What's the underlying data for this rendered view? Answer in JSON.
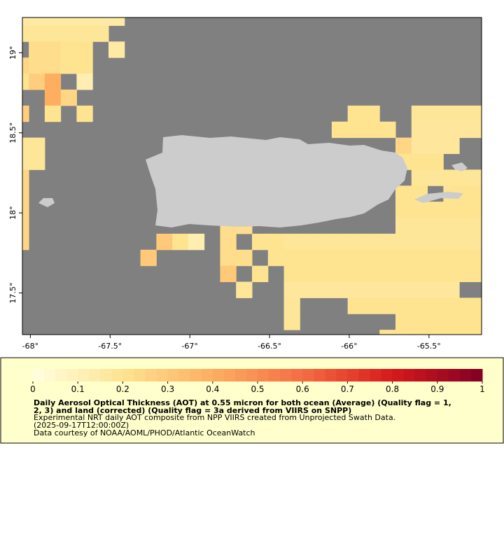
{
  "chart_data": {
    "type": "map",
    "xlim": [
      -68.05,
      -65.17
    ],
    "ylim": [
      17.24,
      19.22
    ],
    "xticks": [
      {
        "value": -68,
        "label": "-68°"
      },
      {
        "value": -67.5,
        "label": "-67.5°"
      },
      {
        "value": -67,
        "label": "-67°"
      },
      {
        "value": -66.5,
        "label": "-66.5°"
      },
      {
        "value": -66,
        "label": "-66°"
      },
      {
        "value": -65.5,
        "label": "-65.5°"
      }
    ],
    "yticks": [
      {
        "value": 17.5,
        "label": "17.5°"
      },
      {
        "value": 18,
        "label": "18°"
      },
      {
        "value": 18.5,
        "label": "18.5°"
      },
      {
        "value": 19,
        "label": "19°"
      }
    ],
    "grid": {
      "west": -68.11,
      "north": 19.27,
      "cell": 0.1,
      "rows": [
        [
          0.15,
          0.15,
          0.15,
          0.15,
          0.15,
          0.15,
          0.15,
          null,
          null,
          null,
          null,
          null,
          null,
          null,
          null,
          null,
          null,
          null,
          null,
          null,
          null,
          null,
          null,
          null,
          null,
          null,
          null,
          null,
          null,
          null
        ],
        [
          0.18,
          0.18,
          0.18,
          0.18,
          0.18,
          0.18,
          null,
          null,
          null,
          null,
          null,
          null,
          null,
          null,
          null,
          null,
          null,
          null,
          null,
          null,
          null,
          null,
          null,
          null,
          null,
          null,
          null,
          null,
          null,
          null
        ],
        [
          null,
          0.22,
          0.22,
          0.2,
          0.2,
          null,
          0.15,
          null,
          null,
          null,
          null,
          null,
          null,
          null,
          null,
          null,
          null,
          null,
          null,
          null,
          null,
          null,
          null,
          null,
          null,
          null,
          null,
          null,
          null,
          null
        ],
        [
          0.25,
          0.22,
          0.22,
          0.2,
          0.2,
          null,
          null,
          null,
          null,
          null,
          null,
          null,
          null,
          null,
          null,
          null,
          null,
          null,
          null,
          null,
          null,
          null,
          null,
          null,
          null,
          null,
          null,
          null,
          null,
          null
        ],
        [
          0.2,
          0.28,
          0.4,
          null,
          0.12,
          null,
          null,
          null,
          null,
          null,
          null,
          null,
          null,
          null,
          null,
          null,
          null,
          null,
          null,
          null,
          null,
          null,
          null,
          null,
          null,
          null,
          null,
          null,
          null,
          null
        ],
        [
          null,
          null,
          0.4,
          0.25,
          null,
          null,
          null,
          null,
          null,
          null,
          null,
          null,
          null,
          null,
          null,
          null,
          null,
          null,
          null,
          null,
          null,
          null,
          null,
          null,
          null,
          null,
          null,
          null,
          null,
          null
        ],
        [
          0.28,
          null,
          0.2,
          null,
          0.2,
          null,
          null,
          null,
          null,
          null,
          null,
          null,
          null,
          null,
          null,
          null,
          null,
          null,
          null,
          null,
          null,
          0.2,
          0.2,
          null,
          null,
          0.18,
          0.18,
          0.18,
          0.18,
          0.18
        ],
        [
          null,
          null,
          null,
          null,
          null,
          null,
          null,
          null,
          null,
          null,
          null,
          null,
          null,
          null,
          null,
          null,
          null,
          null,
          null,
          null,
          0.2,
          0.2,
          0.2,
          0.2,
          null,
          0.17,
          0.17,
          0.17,
          0.17,
          0.17
        ],
        [
          0.18,
          0.18,
          null,
          null,
          null,
          null,
          null,
          null,
          null,
          null,
          null,
          null,
          null,
          null,
          null,
          null,
          null,
          null,
          null,
          null,
          null,
          null,
          null,
          null,
          0.25,
          0.17,
          0.17,
          0.17,
          null,
          null
        ],
        [
          0.18,
          0.18,
          null,
          null,
          null,
          null,
          null,
          null,
          null,
          null,
          null,
          null,
          null,
          null,
          null,
          null,
          null,
          null,
          null,
          null,
          null,
          null,
          null,
          null,
          0.2,
          0.2,
          0.2,
          null,
          null,
          null
        ],
        [
          0.25,
          null,
          null,
          null,
          null,
          null,
          null,
          null,
          null,
          null,
          null,
          null,
          null,
          null,
          null,
          null,
          null,
          null,
          null,
          null,
          null,
          null,
          null,
          null,
          null,
          0.18,
          0.18,
          0.18,
          0.18,
          0.18
        ],
        [
          0.25,
          null,
          null,
          null,
          null,
          null,
          null,
          null,
          null,
          null,
          null,
          null,
          null,
          null,
          null,
          null,
          null,
          null,
          null,
          null,
          null,
          null,
          null,
          null,
          0.2,
          0.2,
          null,
          0.2,
          0.2,
          0.2
        ],
        [
          0.25,
          null,
          null,
          null,
          null,
          null,
          null,
          null,
          null,
          null,
          null,
          null,
          null,
          null,
          null,
          null,
          null,
          null,
          null,
          null,
          null,
          null,
          null,
          null,
          0.2,
          0.2,
          0.2,
          0.2,
          0.2,
          0.2
        ],
        [
          0.25,
          null,
          null,
          null,
          null,
          null,
          null,
          null,
          null,
          null,
          null,
          null,
          null,
          0.22,
          0.22,
          null,
          null,
          null,
          null,
          null,
          null,
          null,
          null,
          null,
          0.18,
          0.18,
          0.18,
          0.18,
          0.18,
          0.18
        ],
        [
          0.25,
          null,
          null,
          null,
          null,
          null,
          null,
          null,
          null,
          0.3,
          0.2,
          0.12,
          null,
          0.22,
          null,
          0.2,
          0.2,
          0.18,
          0.18,
          0.18,
          0.18,
          0.18,
          0.18,
          0.18,
          0.18,
          0.18,
          0.18,
          0.18,
          0.18,
          0.18
        ],
        [
          null,
          null,
          null,
          null,
          null,
          null,
          null,
          null,
          0.3,
          null,
          null,
          null,
          null,
          0.22,
          0.22,
          null,
          0.2,
          0.2,
          0.2,
          0.2,
          0.2,
          0.2,
          0.2,
          0.2,
          0.2,
          0.2,
          0.2,
          0.2,
          0.2,
          0.2
        ],
        [
          null,
          null,
          null,
          null,
          null,
          null,
          null,
          null,
          null,
          null,
          null,
          null,
          null,
          0.3,
          null,
          0.2,
          null,
          0.2,
          0.2,
          0.2,
          0.2,
          0.2,
          0.2,
          0.2,
          0.2,
          0.2,
          0.2,
          0.2,
          0.2,
          0.2
        ],
        [
          null,
          null,
          null,
          null,
          null,
          null,
          null,
          null,
          null,
          null,
          null,
          null,
          null,
          null,
          0.18,
          null,
          null,
          0.17,
          0.17,
          0.17,
          0.17,
          0.17,
          0.17,
          0.17,
          0.17,
          0.17,
          0.17,
          0.17,
          null,
          null
        ],
        [
          null,
          null,
          null,
          null,
          null,
          null,
          null,
          null,
          null,
          null,
          null,
          null,
          null,
          null,
          null,
          null,
          null,
          0.18,
          null,
          null,
          null,
          0.2,
          0.2,
          0.2,
          0.2,
          0.2,
          0.2,
          0.2,
          0.2,
          0.2
        ],
        [
          null,
          null,
          null,
          null,
          null,
          null,
          null,
          null,
          null,
          null,
          null,
          null,
          null,
          null,
          null,
          null,
          null,
          0.18,
          null,
          null,
          null,
          null,
          null,
          null,
          0.2,
          0.2,
          0.2,
          0.2,
          0.2,
          0.2
        ],
        [
          null,
          null,
          null,
          null,
          null,
          null,
          null,
          null,
          null,
          null,
          null,
          null,
          null,
          null,
          null,
          null,
          null,
          null,
          null,
          null,
          null,
          null,
          null,
          0.2,
          0.2,
          0.2,
          0.2,
          0.2,
          0.2,
          0.2
        ]
      ]
    },
    "colorbar": {
      "lim": [
        0,
        1
      ],
      "ticks": [
        0,
        0.1,
        0.2,
        0.3,
        0.4,
        0.5,
        0.6,
        0.7,
        0.8,
        0.9,
        1
      ],
      "colors": [
        "#ffffe0",
        "#fee391",
        "#fdae61",
        "#f46d43",
        "#d7191c",
        "#800026"
      ]
    },
    "legend_lines": [
      "Daily Aerosol Optical Thickness (AOT) at 0.55 micron for both ocean (Average) (Quality flag = 1,",
      "2, 3) and land (corrected) (Quality flag = 3a derived from VIIRS on SNPP)"
    ],
    "notes": [
      "Experimental NRT daily AOT composite from NPP VIIRS created from Unprojected Swath Data.",
      "(2025-09-17T12:00:00Z)",
      "Data courtesy of NOAA/AOML/PHOD/Atlantic OceanWatch"
    ]
  }
}
